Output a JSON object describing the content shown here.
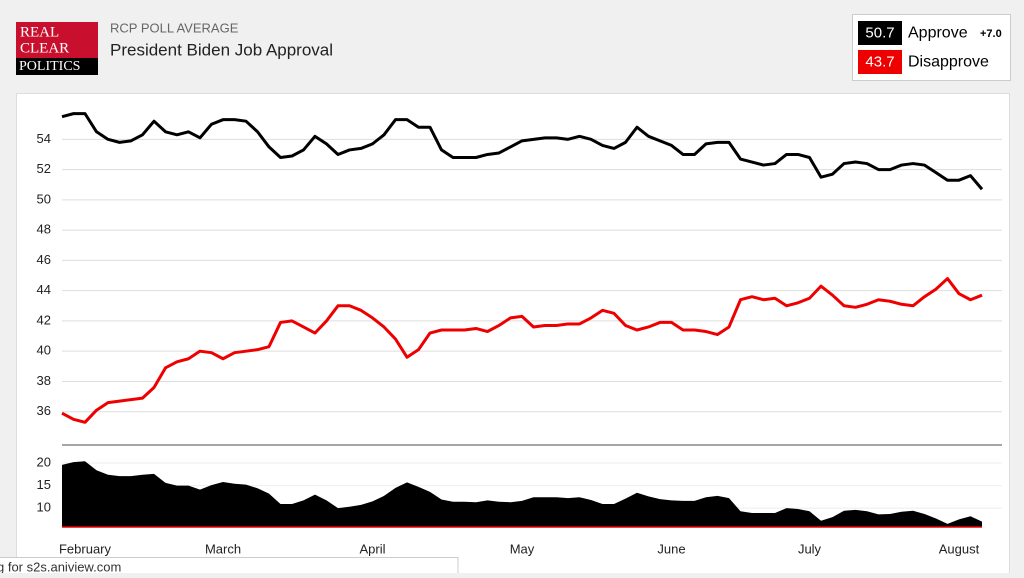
{
  "logo": [
    "REAL",
    "CLEAR",
    "POLITICS"
  ],
  "status_text": "g for s2s.aniview.com",
  "chart_data": {
    "type": "line",
    "subtitle": "RCP POLL AVERAGE",
    "title": "President Biden Job Approval",
    "categories": [
      null,
      null,
      "February",
      null,
      null,
      null,
      null,
      null,
      null,
      null,
      null,
      null,
      null,
      null,
      "March",
      null,
      null,
      null,
      null,
      null,
      null,
      null,
      null,
      null,
      null,
      null,
      null,
      "April",
      null,
      null,
      null,
      null,
      null,
      null,
      null,
      null,
      null,
      null,
      null,
      null,
      "May",
      null,
      null,
      null,
      null,
      null,
      null,
      null,
      null,
      null,
      null,
      null,
      null,
      "June",
      null,
      null,
      null,
      null,
      null,
      null,
      null,
      null,
      null,
      null,
      null,
      "July",
      null,
      null,
      null,
      null,
      null,
      null,
      null,
      null,
      null,
      null,
      null,
      null,
      "August",
      null,
      null
    ],
    "series": [
      {
        "name": "Approve",
        "color": "#000000",
        "current": 50.7,
        "values": [
          55.5,
          55.7,
          55.7,
          54.5,
          54.0,
          53.8,
          53.9,
          54.3,
          55.2,
          54.5,
          54.3,
          54.5,
          54.1,
          55.0,
          55.3,
          55.3,
          55.2,
          54.5,
          53.5,
          52.8,
          52.9,
          53.3,
          54.2,
          53.7,
          53.0,
          53.3,
          53.4,
          53.7,
          54.3,
          55.3,
          55.3,
          54.8,
          54.8,
          53.3,
          52.8,
          52.8,
          52.8,
          53.0,
          53.1,
          53.5,
          53.9,
          54.0,
          54.1,
          54.1,
          54.0,
          54.2,
          54.0,
          53.6,
          53.4,
          53.8,
          54.8,
          54.2,
          53.9,
          53.6,
          53.0,
          53.0,
          53.7,
          53.8,
          53.8,
          52.7,
          52.5,
          52.3,
          52.4,
          53.0,
          53.0,
          52.8,
          51.5,
          51.7,
          52.4,
          52.5,
          52.4,
          52.0,
          52.0,
          52.3,
          52.4,
          52.3,
          51.8,
          51.3,
          51.3,
          51.6,
          50.7
        ]
      },
      {
        "name": "Disapprove",
        "color": "#ee0000",
        "current": 43.7,
        "values": [
          35.9,
          35.5,
          35.3,
          36.1,
          36.6,
          36.7,
          36.8,
          36.9,
          37.6,
          38.9,
          39.3,
          39.5,
          40.0,
          39.9,
          39.5,
          39.9,
          40.0,
          40.1,
          40.3,
          41.9,
          42.0,
          41.6,
          41.2,
          42.0,
          43.0,
          43.0,
          42.7,
          42.2,
          41.6,
          40.8,
          39.6,
          40.1,
          41.2,
          41.4,
          41.4,
          41.4,
          41.5,
          41.3,
          41.7,
          42.2,
          42.3,
          41.6,
          41.7,
          41.7,
          41.8,
          41.8,
          42.2,
          42.7,
          42.5,
          41.7,
          41.4,
          41.6,
          41.9,
          41.9,
          41.4,
          41.4,
          41.3,
          41.1,
          41.6,
          43.4,
          43.6,
          43.4,
          43.5,
          43.0,
          43.2,
          43.5,
          44.3,
          43.7,
          43.0,
          42.9,
          43.1,
          43.4,
          43.3,
          43.1,
          43.0,
          43.6,
          44.1,
          44.8,
          43.8,
          43.4,
          43.7
        ]
      }
    ],
    "spread": {
      "value": 7.0,
      "label": "+7.0"
    },
    "ylim": [
      33.8,
      56.6
    ],
    "yticks": [
      36,
      38,
      40,
      42,
      44,
      46,
      48,
      50,
      52,
      54
    ],
    "y2lim": [
      5.8,
      22.9
    ],
    "y2ticks": [
      10,
      15,
      20
    ],
    "grid": true
  }
}
